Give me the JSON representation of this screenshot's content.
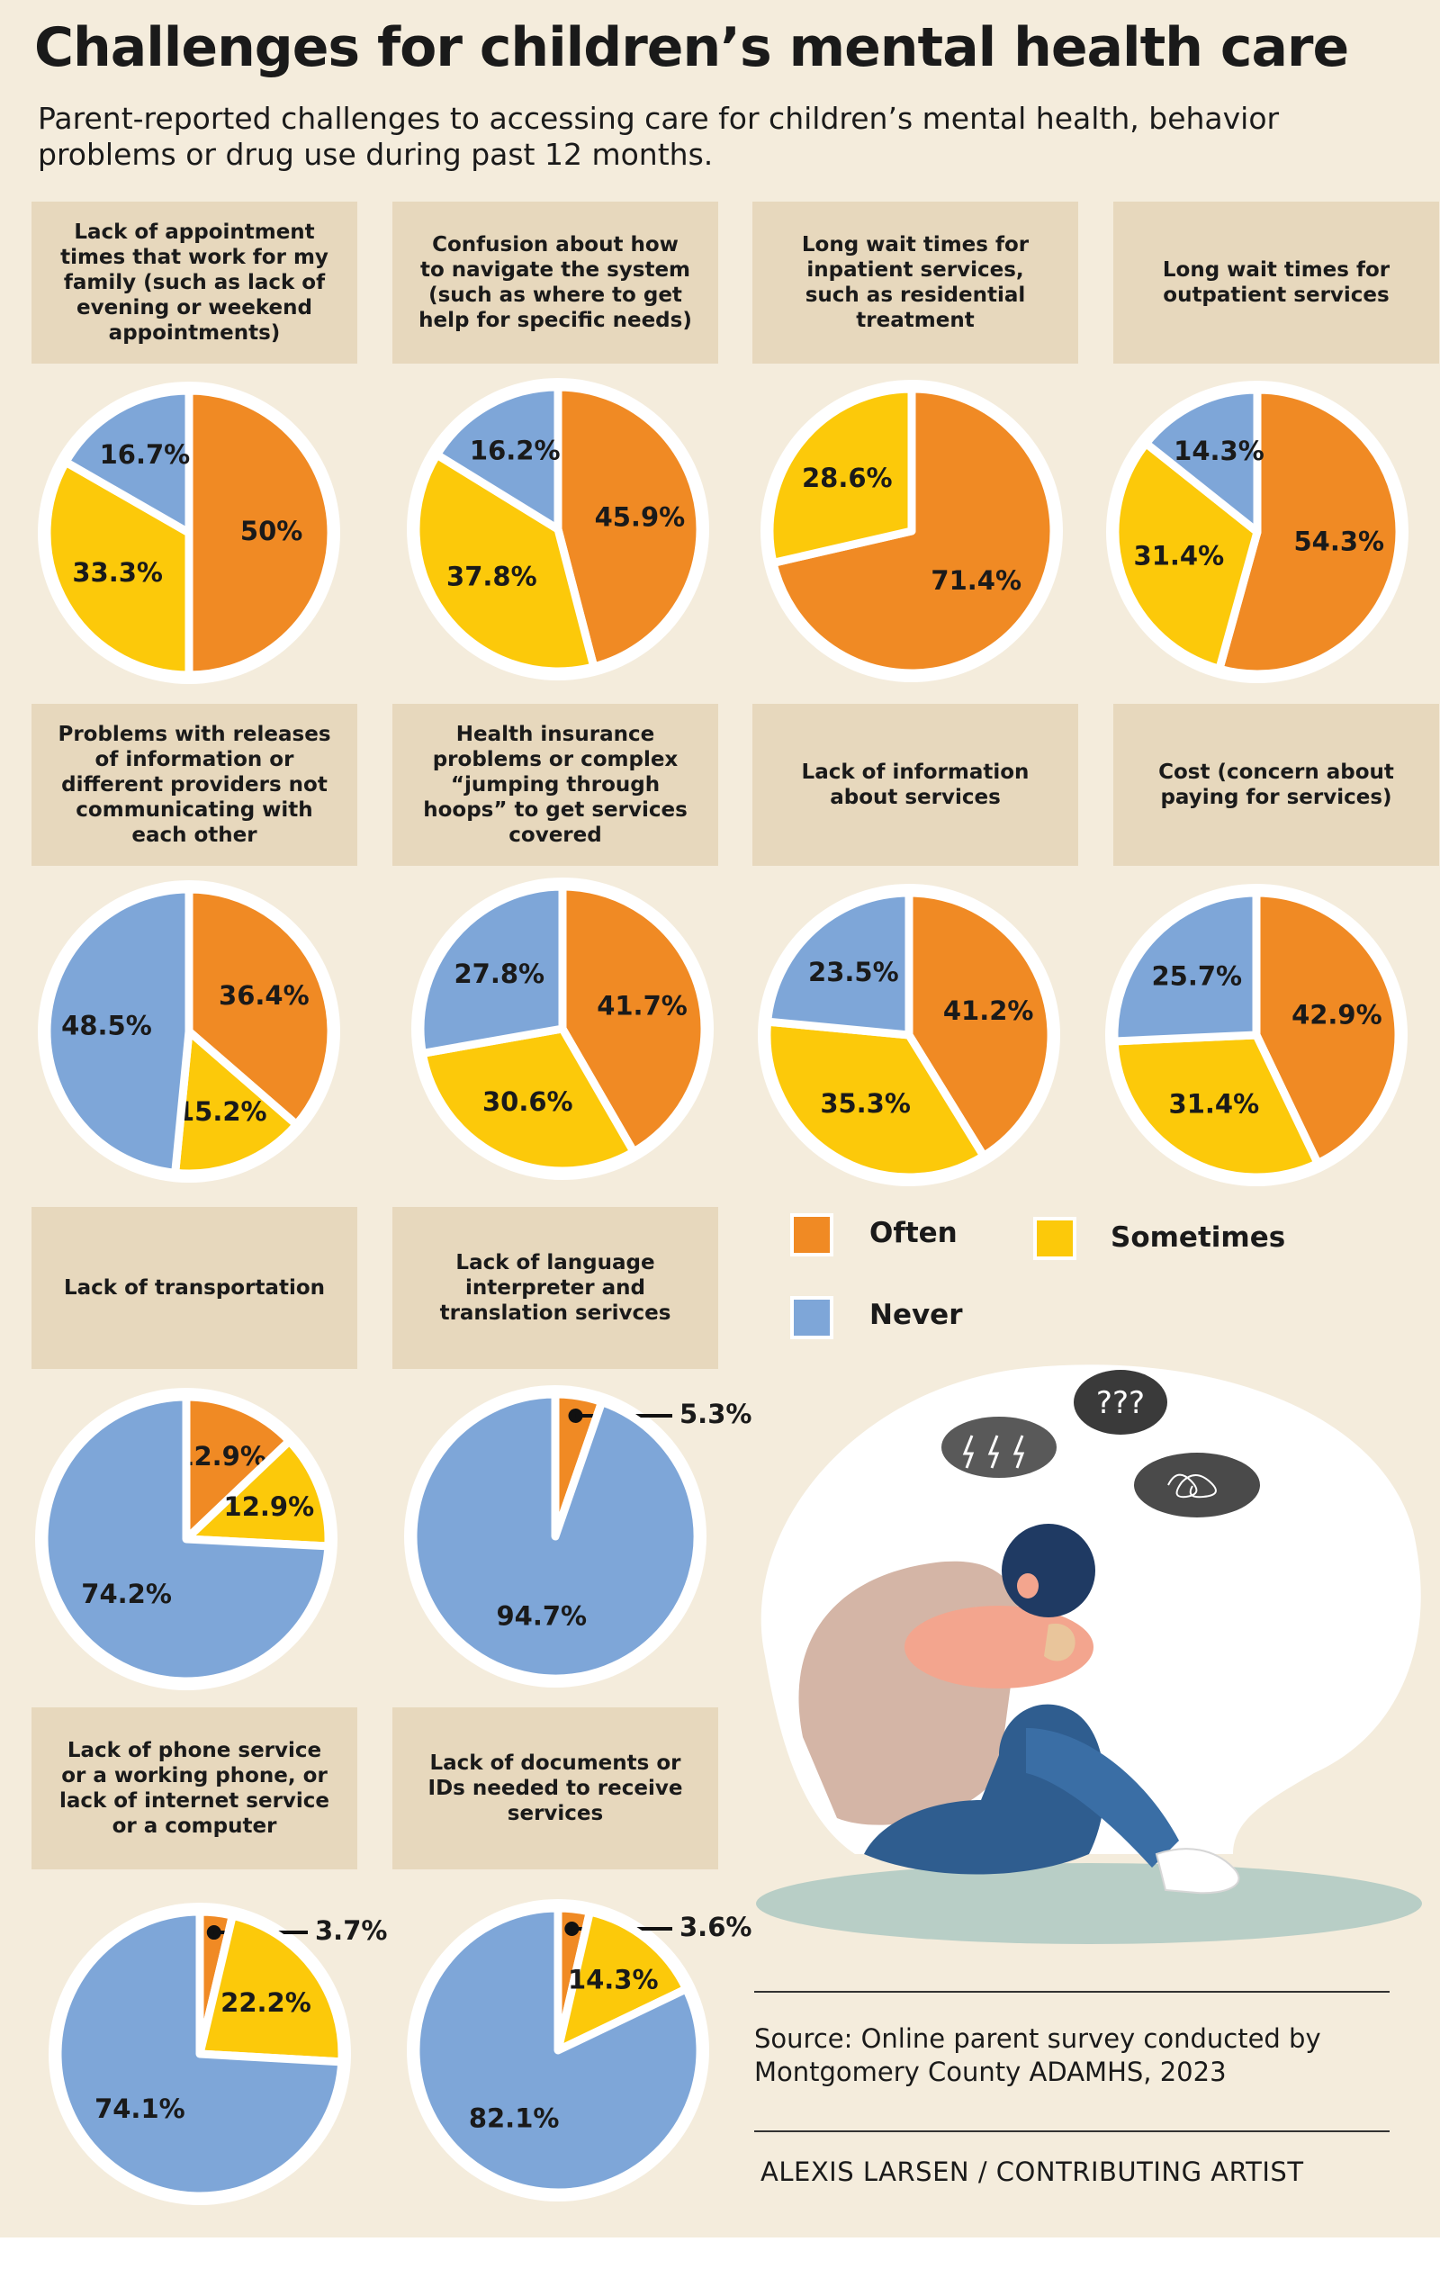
{
  "title": "Challenges for children’s mental health care",
  "subtitle": "Parent-reported challenges to accessing care for children’s mental health, behavior problems or drug use during past 12 months.",
  "colors": {
    "often": "#f08a24",
    "sometimes": "#fcc90a",
    "never": "#7ea6d8",
    "background": "#f4ecdc",
    "label_box": "#e7d8bd"
  },
  "legend": {
    "often": "Often",
    "sometimes": "Sometimes",
    "never": "Never"
  },
  "source": "Source: Online parent survey conducted by Montgomery County ADAMHS, 2023",
  "credit": "ALEXIS LARSEN / CONTRIBUTING ARTIST",
  "illustration": {
    "icon": "sad-child-illustration",
    "clouds": [
      "lightning-cloud-icon",
      "question-cloud-icon",
      "scribble-cloud-icon"
    ]
  },
  "chart_data": [
    {
      "type": "pie",
      "title": "Lack of appointment times that work for my family (such as lack of evening or weekend appointments)",
      "slices": [
        {
          "category": "Often",
          "value": 50,
          "label": "50%"
        },
        {
          "category": "Sometimes",
          "value": 33.3,
          "label": "33.3%"
        },
        {
          "category": "Never",
          "value": 16.7,
          "label": "16.7%"
        }
      ]
    },
    {
      "type": "pie",
      "title": "Confusion about how to navigate the system (such as where to get help for specific needs)",
      "slices": [
        {
          "category": "Often",
          "value": 45.9,
          "label": "45.9%"
        },
        {
          "category": "Sometimes",
          "value": 37.8,
          "label": "37.8%"
        },
        {
          "category": "Never",
          "value": 16.2,
          "label": "16.2%"
        }
      ]
    },
    {
      "type": "pie",
      "title": "Long wait times for inpatient services, such as residential treatment",
      "slices": [
        {
          "category": "Often",
          "value": 71.4,
          "label": "71.4%"
        },
        {
          "category": "Sometimes",
          "value": 28.6,
          "label": "28.6%"
        }
      ]
    },
    {
      "type": "pie",
      "title": "Long wait times for outpatient services",
      "slices": [
        {
          "category": "Often",
          "value": 54.3,
          "label": "54.3%"
        },
        {
          "category": "Sometimes",
          "value": 31.4,
          "label": "31.4%"
        },
        {
          "category": "Never",
          "value": 14.3,
          "label": "14.3%"
        }
      ]
    },
    {
      "type": "pie",
      "title": "Problems with releases of information or different providers not communicating with each other",
      "slices": [
        {
          "category": "Often",
          "value": 36.4,
          "label": "36.4%"
        },
        {
          "category": "Sometimes",
          "value": 15.2,
          "label": "15.2%"
        },
        {
          "category": "Never",
          "value": 48.5,
          "label": "48.5%"
        }
      ]
    },
    {
      "type": "pie",
      "title": "Health insurance problems or complex “jumping through hoops” to get services covered",
      "slices": [
        {
          "category": "Often",
          "value": 41.7,
          "label": "41.7%"
        },
        {
          "category": "Sometimes",
          "value": 30.6,
          "label": "30.6%"
        },
        {
          "category": "Never",
          "value": 27.8,
          "label": "27.8%"
        }
      ]
    },
    {
      "type": "pie",
      "title": "Lack of information about services",
      "slices": [
        {
          "category": "Often",
          "value": 41.2,
          "label": "41.2%"
        },
        {
          "category": "Sometimes",
          "value": 35.3,
          "label": "35.3%"
        },
        {
          "category": "Never",
          "value": 23.5,
          "label": "23.5%"
        }
      ]
    },
    {
      "type": "pie",
      "title": "Cost (concern about paying for services)",
      "slices": [
        {
          "category": "Often",
          "value": 42.9,
          "label": "42.9%"
        },
        {
          "category": "Sometimes",
          "value": 31.4,
          "label": "31.4%"
        },
        {
          "category": "Never",
          "value": 25.7,
          "label": "25.7%"
        }
      ]
    },
    {
      "type": "pie",
      "title": "Lack of transportation",
      "slices": [
        {
          "category": "Often",
          "value": 12.9,
          "label": "12.9%"
        },
        {
          "category": "Sometimes",
          "value": 12.9,
          "label": "12.9%"
        },
        {
          "category": "Never",
          "value": 74.2,
          "label": "74.2%"
        }
      ]
    },
    {
      "type": "pie",
      "title": "Lack of language interpreter and translation serivces",
      "slices": [
        {
          "category": "Often",
          "value": 5.3,
          "label": "5.3%"
        },
        {
          "category": "Never",
          "value": 94.7,
          "label": "94.7%"
        }
      ]
    },
    {
      "type": "pie",
      "title": "Lack of phone service or a working phone, or lack of internet service or a computer",
      "slices": [
        {
          "category": "Often",
          "value": 3.7,
          "label": "3.7%"
        },
        {
          "category": "Sometimes",
          "value": 22.2,
          "label": "22.2%"
        },
        {
          "category": "Never",
          "value": 74.1,
          "label": "74.1%"
        }
      ]
    },
    {
      "type": "pie",
      "title": "Lack of documents or IDs needed to receive services",
      "slices": [
        {
          "category": "Often",
          "value": 3.6,
          "label": "3.6%"
        },
        {
          "category": "Sometimes",
          "value": 14.3,
          "label": "14.3%"
        },
        {
          "category": "Never",
          "value": 82.1,
          "label": "82.1%"
        }
      ]
    }
  ]
}
